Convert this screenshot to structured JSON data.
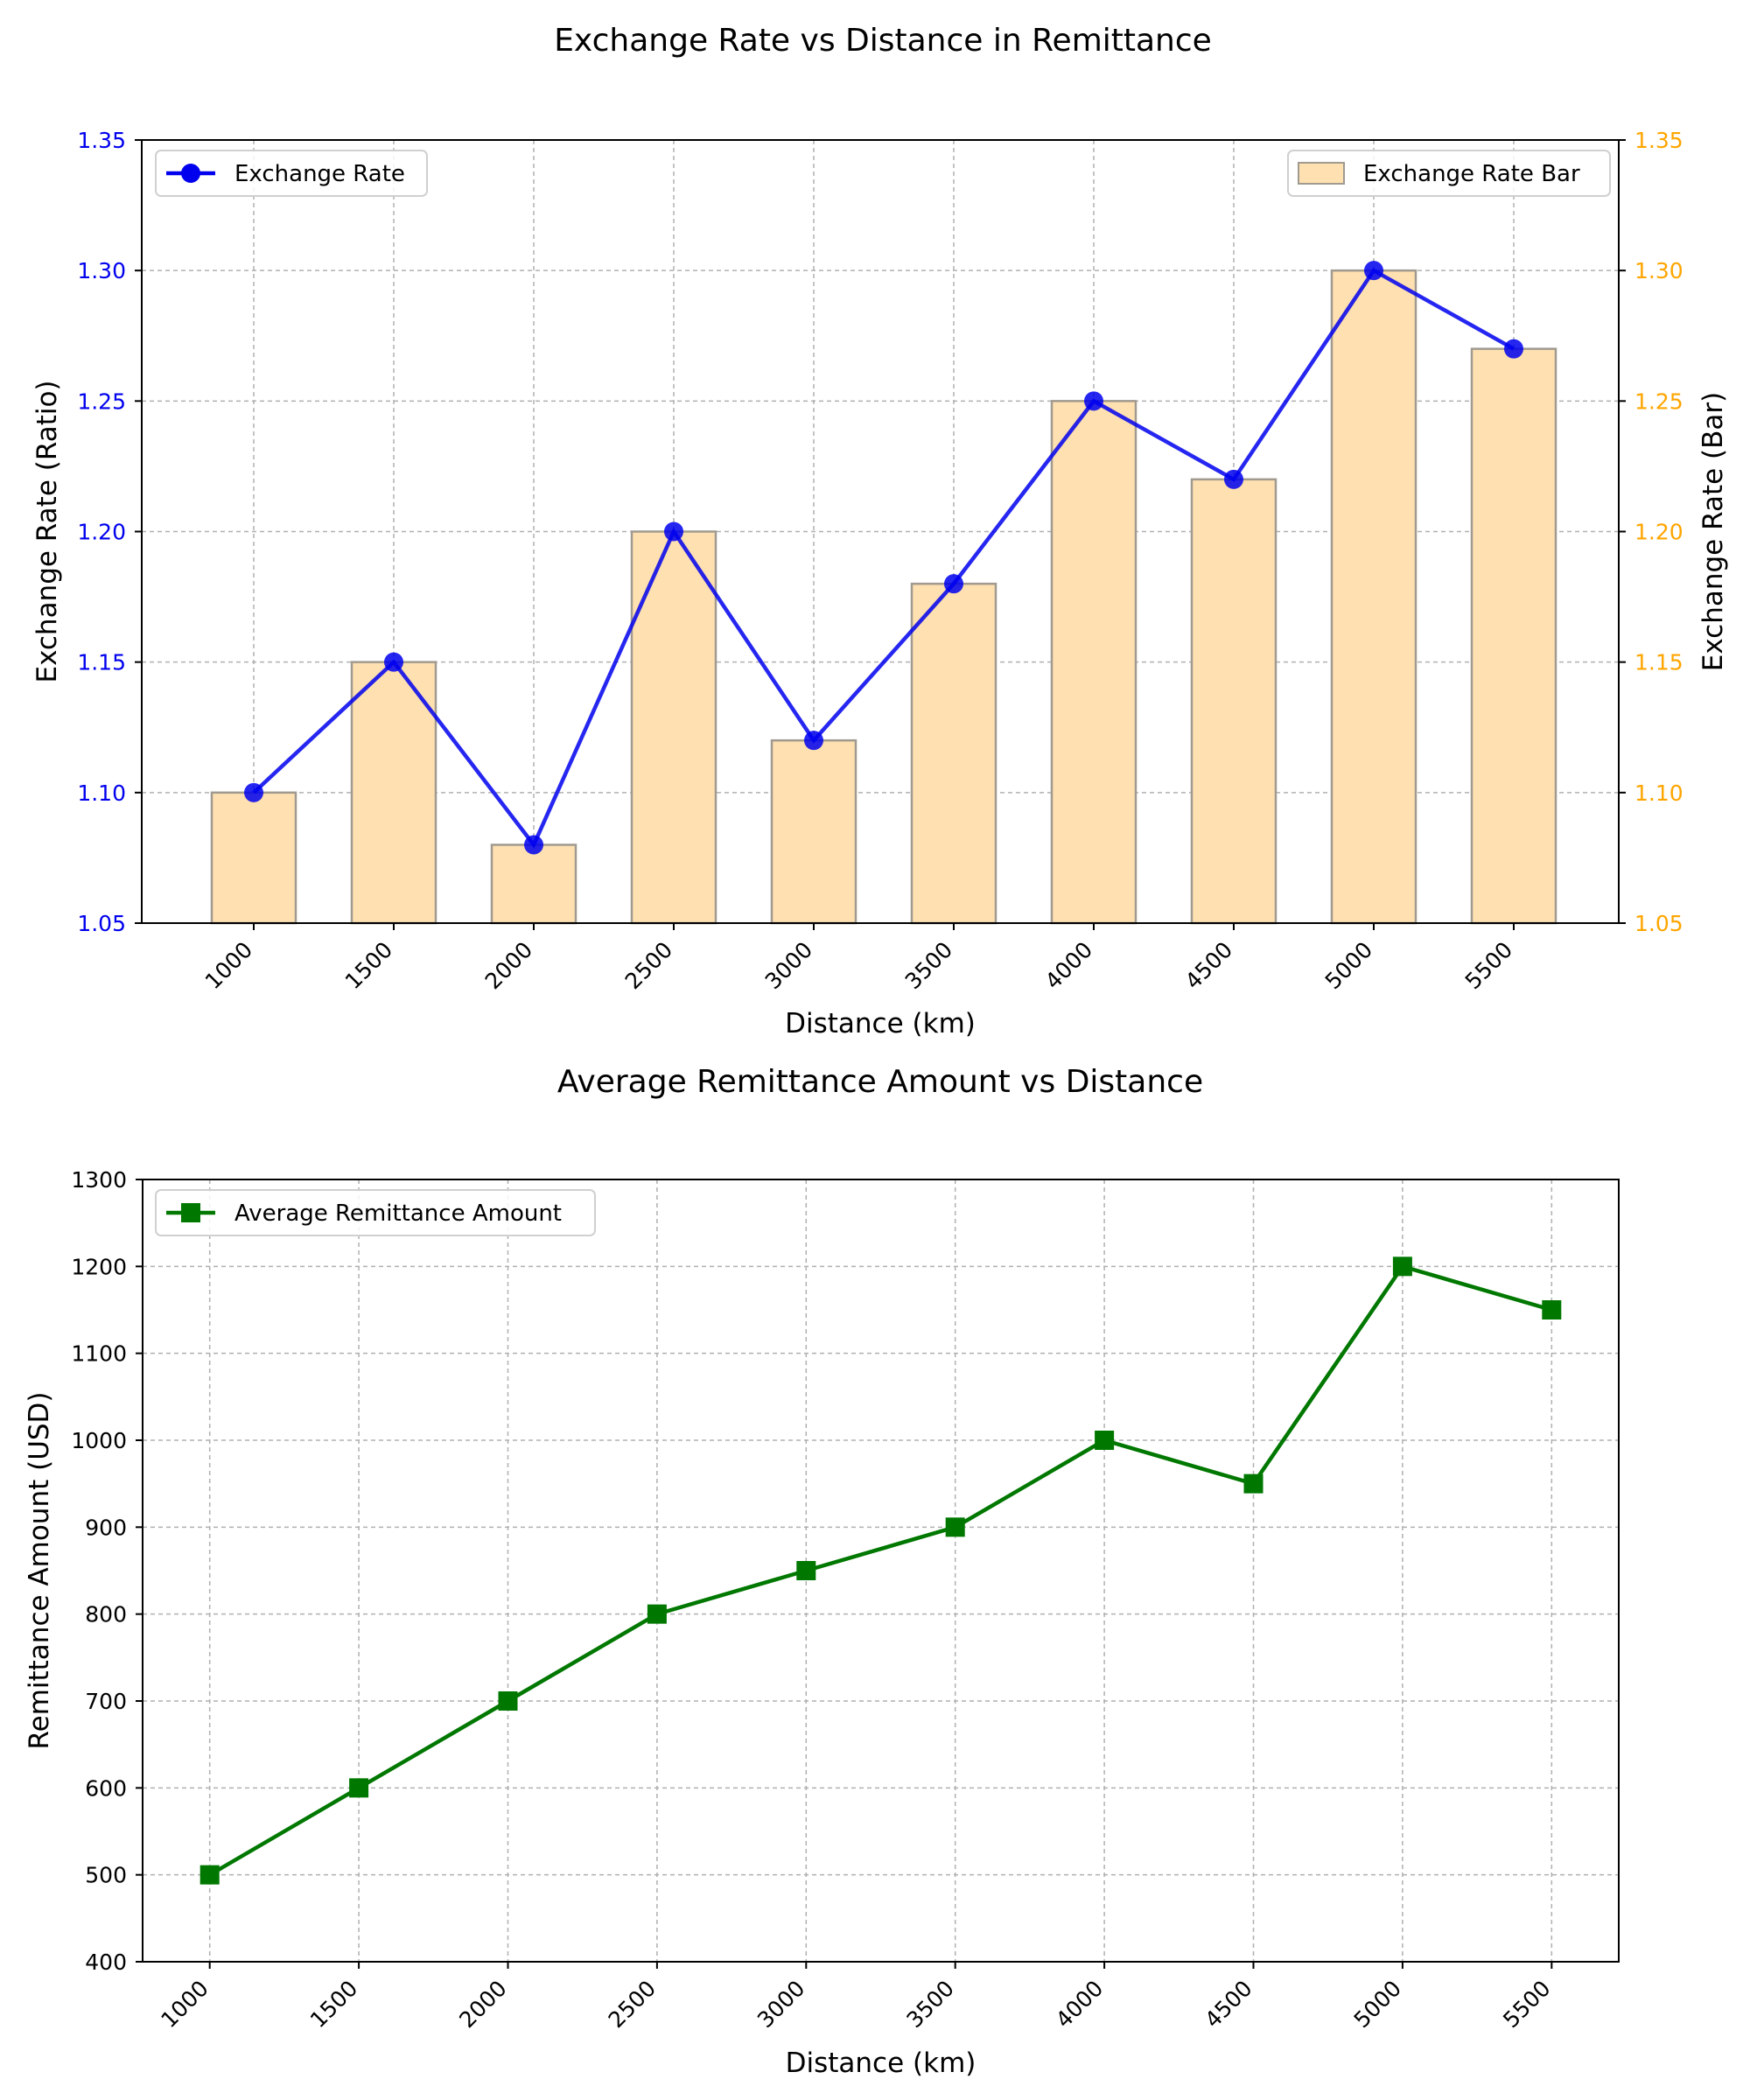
{
  "figure": {
    "suptitle": "Exchange Rate vs Distance in Remittance"
  },
  "chart_data": [
    {
      "type": "line+bar",
      "title": "",
      "xlabel": "Distance (km)",
      "ylabel": "Exchange Rate (Ratio)",
      "ylabel_right": "Exchange Rate (Bar)",
      "categories": [
        "1000",
        "1500",
        "2000",
        "2500",
        "3000",
        "3500",
        "4000",
        "4500",
        "5000",
        "5500"
      ],
      "ylim": [
        1.05,
        1.35
      ],
      "ylim_right": [
        1.05,
        1.35
      ],
      "yticks": [
        "1.05",
        "1.10",
        "1.15",
        "1.20",
        "1.25",
        "1.30",
        "1.35"
      ],
      "grid": true,
      "series": [
        {
          "name": "Exchange Rate",
          "kind": "line",
          "marker": "circle",
          "axis": "left",
          "color": "#0000ee",
          "values": [
            1.1,
            1.15,
            1.08,
            1.2,
            1.12,
            1.18,
            1.25,
            1.22,
            1.3,
            1.27
          ]
        },
        {
          "name": "Exchange Rate Bar",
          "kind": "bar",
          "axis": "right",
          "color": "#ffe0b0",
          "values": [
            1.1,
            1.15,
            1.08,
            1.2,
            1.12,
            1.18,
            1.25,
            1.22,
            1.3,
            1.27
          ]
        }
      ],
      "left_axis_color": "#0000ee",
      "right_axis_color": "#ffa500",
      "legend_left": "top-left",
      "legend_right": "top-right"
    },
    {
      "type": "line",
      "title": "Average Remittance Amount vs Distance",
      "xlabel": "Distance (km)",
      "ylabel": "Remittance Amount (USD)",
      "x": [
        1000,
        1500,
        2000,
        2500,
        3000,
        3500,
        4000,
        4500,
        5000,
        5500
      ],
      "xticks": [
        "1000",
        "1500",
        "2000",
        "2500",
        "3000",
        "3500",
        "4000",
        "4500",
        "5000",
        "5500"
      ],
      "xlim": [
        775,
        5725
      ],
      "ylim": [
        400,
        1300
      ],
      "yticks": [
        "400",
        "500",
        "600",
        "700",
        "800",
        "900",
        "1000",
        "1100",
        "1200",
        "1300"
      ],
      "grid": true,
      "series": [
        {
          "name": "Average Remittance Amount",
          "marker": "square",
          "color": "#007800",
          "values": [
            500,
            600,
            700,
            800,
            850,
            900,
            1000,
            950,
            1200,
            1150
          ]
        }
      ],
      "legend": "top-left"
    }
  ]
}
